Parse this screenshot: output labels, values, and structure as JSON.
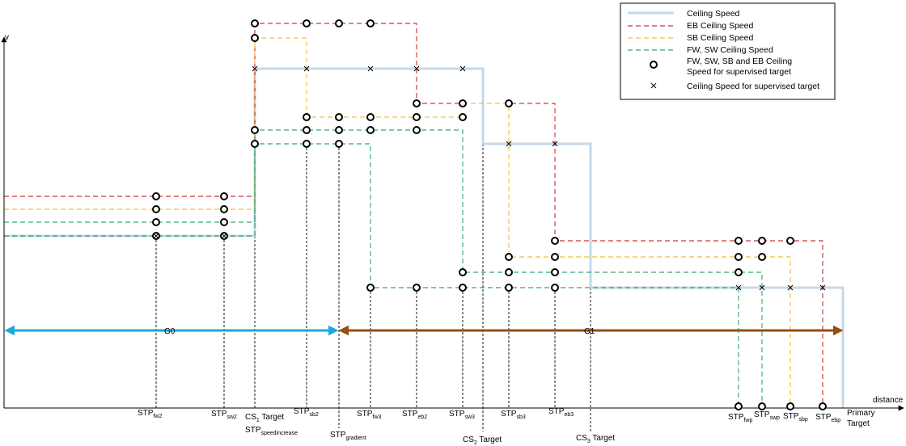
{
  "axes": {
    "y_label": "v",
    "x_label": "distance"
  },
  "legend": {
    "ceiling_speed": "Ceiling Speed",
    "eb_ceiling": "EB Ceiling Speed",
    "sb_ceiling": "SB Ceiling Speed",
    "fw_sw_ceiling": "FW, SW Ceiling Speed",
    "circle_line1": "FW, SW, SB and EB Ceiling",
    "circle_line2": "Speed for supervised target",
    "cross_text": "Ceiling Speed for supervised target"
  },
  "ranges": {
    "g0": "G0",
    "g1": "G1"
  },
  "labels": {
    "stp": "STP",
    "fw2": "fw2",
    "sw2": "sw2",
    "cs1_a": "CS",
    "cs1_b": "1",
    "cs1_c": " Target",
    "speedincrease": "speedincrease",
    "sb2": "sb2",
    "gradient": "gradient",
    "fw3": "fw3",
    "eb2": "eb2",
    "sw3": "sw3",
    "cs2_a": "CS",
    "cs2_b": "2",
    "cs2_c": " Target",
    "sb3": "sb3",
    "eb3": "eb3",
    "cs3_a": "CS",
    "cs3_b": "3",
    "cs3_c": " Target",
    "fwp": "fwp",
    "swp": "swp",
    "sbp": "sbp",
    "ebp": "ebp",
    "primary1": "Primary",
    "primary2": "Target"
  },
  "colors": {
    "ceiling": "#c5d8ea",
    "eb": "#c00000",
    "sb": "#f0b000",
    "fw_sw": "#00924a",
    "g0_arrow": "#1aa7e0",
    "g1_arrow": "#954f14",
    "axis": "#000000"
  }
}
